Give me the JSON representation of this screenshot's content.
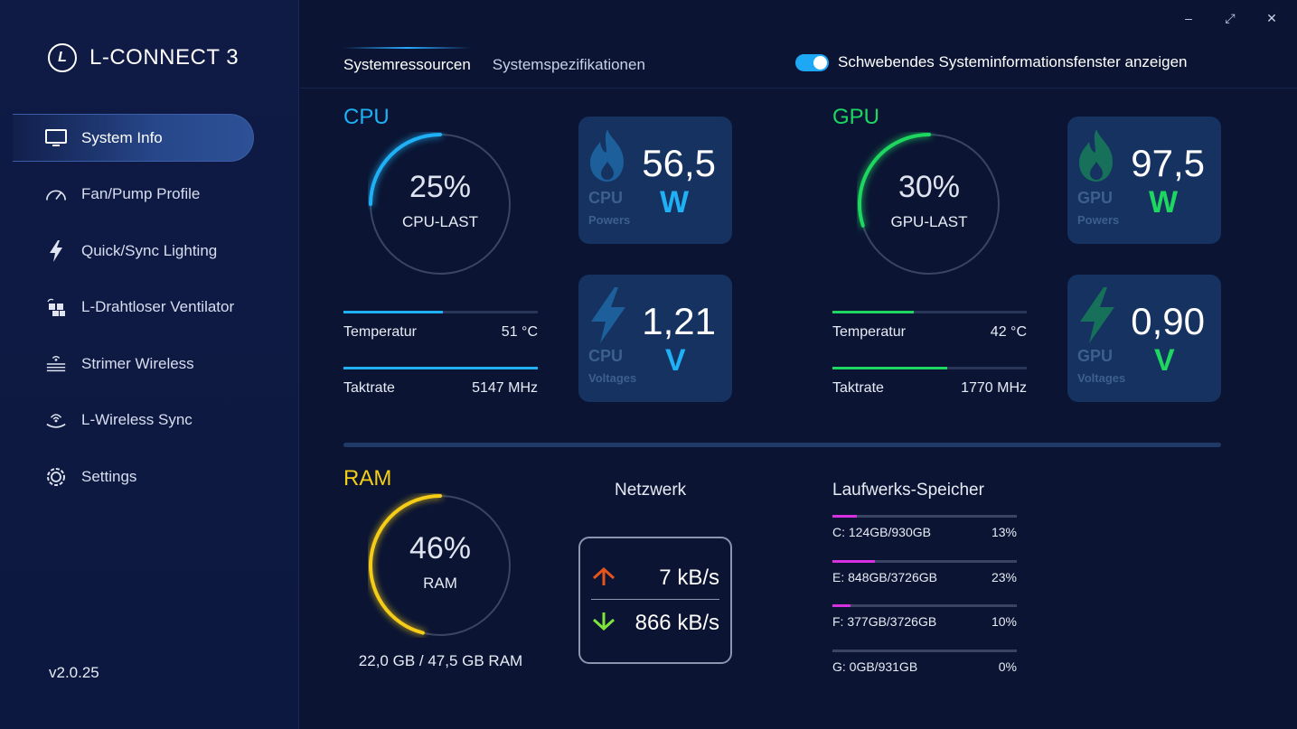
{
  "app": {
    "title": "L-CONNECT 3",
    "logo_letter": "L",
    "version": "v2.0.25"
  },
  "sidebar": {
    "items": [
      {
        "label": "System Info",
        "icon": "monitor-icon",
        "active": true
      },
      {
        "label": "Fan/Pump Profile",
        "icon": "gauge-icon",
        "active": false
      },
      {
        "label": "Quick/Sync Lighting",
        "icon": "lightning-icon",
        "active": false
      },
      {
        "label": "L-Drahtloser Ventilator",
        "icon": "fan-grid-icon",
        "active": false
      },
      {
        "label": "Strimer Wireless",
        "icon": "wireless-stack-icon",
        "active": false
      },
      {
        "label": "L-Wireless Sync",
        "icon": "wireless-sync-icon",
        "active": false
      },
      {
        "label": "Settings",
        "icon": "gear-icon",
        "active": false
      }
    ]
  },
  "window": {
    "minimize": "–",
    "maximize": "⤢",
    "close": "✕"
  },
  "tabs": [
    {
      "label": "Systemressourcen",
      "active": true
    },
    {
      "label": "Systemspezifikationen",
      "active": false
    }
  ],
  "floating_toggle": {
    "label": "Schwebendes Systeminformationsfenster anzeigen",
    "on": true
  },
  "colors": {
    "cpu": "#1fb0f5",
    "gpu": "#1ed760",
    "ram": "#f5cc17",
    "drive": "#d630e0",
    "up": "#e5541c",
    "down": "#7ee33a"
  },
  "cpu": {
    "title": "CPU",
    "load_value": "25%",
    "load_label": "CPU-LAST",
    "load_fraction": 0.25,
    "temperature": {
      "label": "Temperatur",
      "value": "51 °C",
      "fraction": 0.51
    },
    "clock": {
      "label": "Taktrate",
      "value": "5147 MHz",
      "fraction": 1.0
    },
    "power": {
      "value": "56,5",
      "unit": "W",
      "name": "CPU",
      "caption": "Powers",
      "icon": "flame-icon"
    },
    "voltage": {
      "value": "1,21",
      "unit": "V",
      "name": "CPU",
      "caption": "Voltages",
      "icon": "bolt-icon"
    }
  },
  "gpu": {
    "title": "GPU",
    "load_value": "30%",
    "load_label": "GPU-LAST",
    "load_fraction": 0.3,
    "temperature": {
      "label": "Temperatur",
      "value": "42 °C",
      "fraction": 0.42
    },
    "clock": {
      "label": "Taktrate",
      "value": "1770 MHz",
      "fraction": 0.59
    },
    "power": {
      "value": "97,5",
      "unit": "W",
      "name": "GPU",
      "caption": "Powers",
      "icon": "flame-icon"
    },
    "voltage": {
      "value": "0,90",
      "unit": "V",
      "name": "GPU",
      "caption": "Voltages",
      "icon": "bolt-icon"
    }
  },
  "ram": {
    "title": "RAM",
    "load_value": "46%",
    "load_label": "RAM",
    "load_fraction": 0.46,
    "usage": "22,0 GB / 47,5 GB RAM"
  },
  "network": {
    "title": "Netzwerk",
    "upload": "7 kB/s",
    "download": "866 kB/s"
  },
  "drives": {
    "title": "Laufwerks-Speicher",
    "items": [
      {
        "label": "C: 124GB/930GB",
        "percent": "13%",
        "fraction": 0.13
      },
      {
        "label": "E: 848GB/3726GB",
        "percent": "23%",
        "fraction": 0.23
      },
      {
        "label": "F: 377GB/3726GB",
        "percent": "10%",
        "fraction": 0.1
      },
      {
        "label": "G: 0GB/931GB",
        "percent": "0%",
        "fraction": 0.0
      }
    ]
  }
}
